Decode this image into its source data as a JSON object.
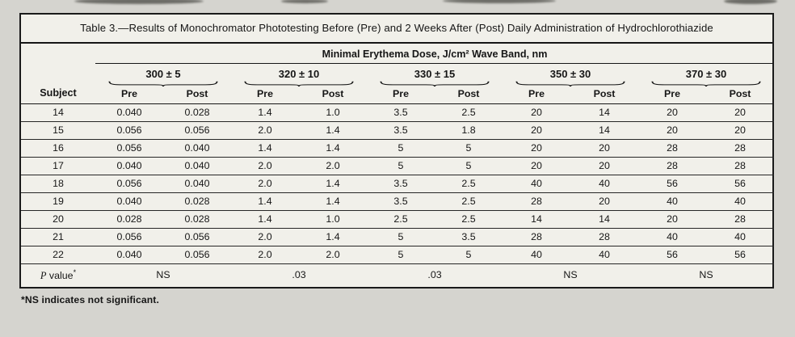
{
  "table": {
    "title": "Table 3.—Results of Monochromator Phototesting Before (Pre) and 2 Weeks After (Post) Daily Administration of Hydrochlorothiazide",
    "spanner": "Minimal Erythema Dose, J/cm² Wave Band, nm",
    "subject_header": "Subject",
    "wave_bands": [
      "300 ± 5",
      "320 ± 10",
      "330 ± 15",
      "350 ± 30",
      "370 ± 30"
    ],
    "sub_headers": [
      "Pre",
      "Post"
    ],
    "rows": [
      {
        "subject": "14",
        "values": [
          "0.040",
          "0.028",
          "1.4",
          "1.0",
          "3.5",
          "2.5",
          "20",
          "14",
          "20",
          "20"
        ]
      },
      {
        "subject": "15",
        "values": [
          "0.056",
          "0.056",
          "2.0",
          "1.4",
          "3.5",
          "1.8",
          "20",
          "14",
          "20",
          "20"
        ]
      },
      {
        "subject": "16",
        "values": [
          "0.056",
          "0.040",
          "1.4",
          "1.4",
          "5",
          "5",
          "20",
          "20",
          "28",
          "28"
        ]
      },
      {
        "subject": "17",
        "values": [
          "0.040",
          "0.040",
          "2.0",
          "2.0",
          "5",
          "5",
          "20",
          "20",
          "28",
          "28"
        ]
      },
      {
        "subject": "18",
        "values": [
          "0.056",
          "0.040",
          "2.0",
          "1.4",
          "3.5",
          "2.5",
          "40",
          "40",
          "56",
          "56"
        ]
      },
      {
        "subject": "19",
        "values": [
          "0.040",
          "0.028",
          "1.4",
          "1.4",
          "3.5",
          "2.5",
          "28",
          "20",
          "40",
          "40"
        ]
      },
      {
        "subject": "20",
        "values": [
          "0.028",
          "0.028",
          "1.4",
          "1.0",
          "2.5",
          "2.5",
          "14",
          "14",
          "20",
          "28"
        ]
      },
      {
        "subject": "21",
        "values": [
          "0.056",
          "0.056",
          "2.0",
          "1.4",
          "5",
          "3.5",
          "28",
          "28",
          "40",
          "40"
        ]
      },
      {
        "subject": "22",
        "values": [
          "0.040",
          "0.056",
          "2.0",
          "2.0",
          "5",
          "5",
          "40",
          "40",
          "56",
          "56"
        ]
      }
    ],
    "p_value_row": {
      "label_italic": "P",
      "label_rest": " value",
      "label_sup": "*",
      "values": [
        "NS",
        ".03",
        ".03",
        "NS",
        "NS"
      ]
    },
    "footnote": "*NS indicates not significant.",
    "colors": {
      "ink": "#161616",
      "paper": "#f1f0ea",
      "scan_background": "#d5d4cf"
    }
  }
}
